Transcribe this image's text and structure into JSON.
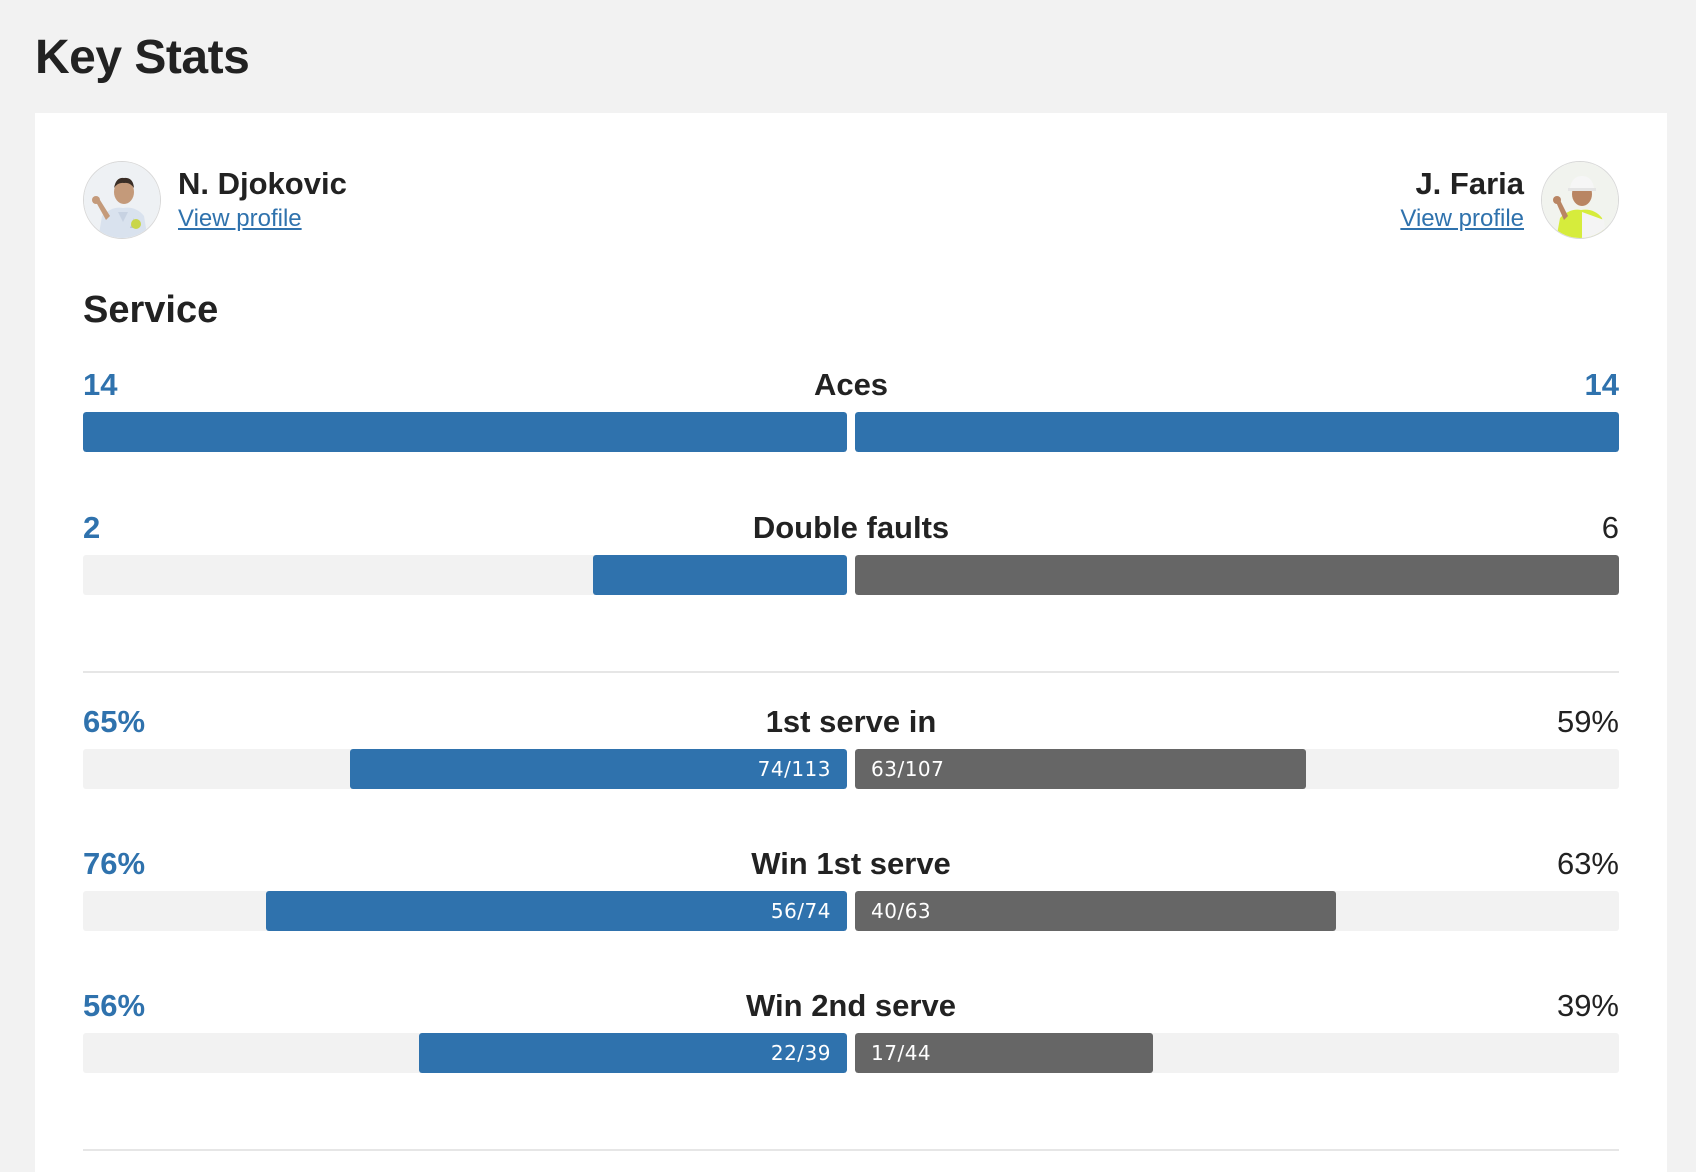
{
  "page_title": "Key Stats",
  "players": {
    "left": {
      "name": "N. Djokovic",
      "link": "View profile"
    },
    "right": {
      "name": "J. Faria",
      "link": "View profile"
    }
  },
  "section_title": "Service",
  "colors": {
    "accent": "#2f72ad",
    "opponent": "#666666",
    "track": "#f2f2f2"
  },
  "stats": [
    {
      "label": "Aces",
      "left": "14",
      "right": "14",
      "left_fraction": 1.0,
      "right_fraction": 1.0,
      "left_detail": "",
      "right_detail": ""
    },
    {
      "label": "Double faults",
      "left": "2",
      "right": "6",
      "left_fraction": 0.333,
      "right_fraction": 1.0,
      "left_detail": "",
      "right_detail": ""
    },
    {
      "label": "1st serve in",
      "left": "65%",
      "right": "59%",
      "left_fraction": 0.65,
      "right_fraction": 0.59,
      "left_detail": "74/113",
      "right_detail": "63/107"
    },
    {
      "label": "Win 1st serve",
      "left": "76%",
      "right": "63%",
      "left_fraction": 0.76,
      "right_fraction": 0.63,
      "left_detail": "56/74",
      "right_detail": "40/63"
    },
    {
      "label": "Win 2nd serve",
      "left": "56%",
      "right": "39%",
      "left_fraction": 0.56,
      "right_fraction": 0.39,
      "left_detail": "22/39",
      "right_detail": "17/44"
    }
  ]
}
